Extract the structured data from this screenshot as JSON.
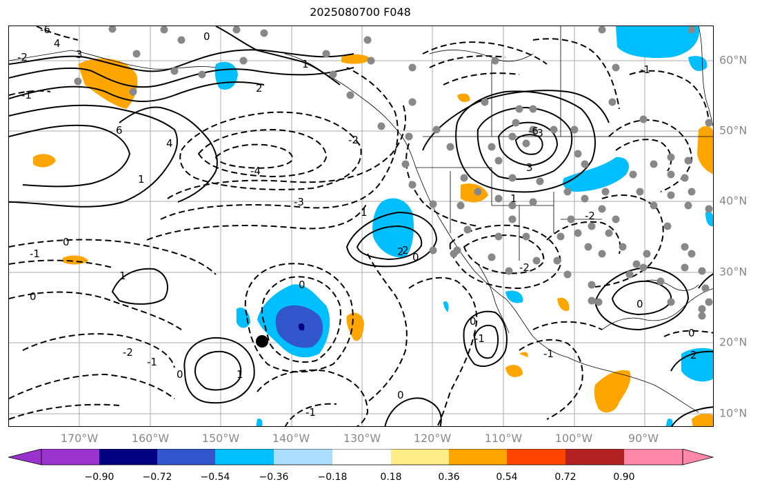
{
  "title": "2025080700 F048",
  "lon_labels": [
    "170°W",
    "160°W",
    "150°W",
    "140°W",
    "130°W",
    "120°W",
    "110°W",
    "100°W",
    "90°W"
  ],
  "lat_labels": [
    "60°N",
    "50°N",
    "40°N",
    "30°N",
    "20°N",
    "10°N"
  ],
  "colorbar": {
    "colors": [
      "#9933cc",
      "#000080",
      "#3355cc",
      "#00bfff",
      "#aaddff",
      "#ffffff",
      "#ffee88",
      "#ffa500",
      "#ff4500",
      "#b22222",
      "#ff88aa"
    ],
    "tick_labels": [
      "−0.90",
      "−0.72",
      "−0.54",
      "−0.36",
      "−0.18",
      "0.18",
      "0.36",
      "0.54",
      "0.72",
      "0.90"
    ]
  },
  "contour_labels": [
    "-6",
    "4",
    "3",
    "1",
    "0",
    "-1",
    "-2",
    "2",
    "6",
    "-4",
    "-3",
    "0",
    "1",
    "-2",
    "4",
    "3",
    "-3",
    "2",
    "-6",
    "1",
    "-1",
    "0",
    "-2",
    "-1",
    "0",
    "2",
    "1",
    "0",
    "-2",
    "0",
    "-1",
    "1",
    "0",
    "-1",
    "0",
    "1",
    "-1",
    "0",
    "-2",
    "-1",
    "0",
    "2"
  ],
  "map_colors": {
    "orange": "#ffa500",
    "lightblue": "#00bfff",
    "blue": "#3355cc",
    "navy": "#000080",
    "gray_dots": "#888888"
  }
}
